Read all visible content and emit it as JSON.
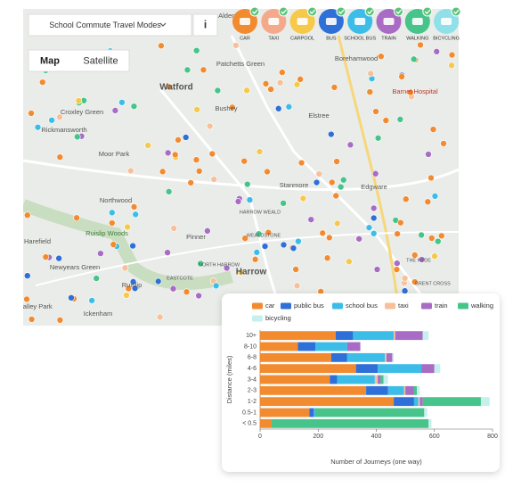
{
  "toolbar": {
    "dropdown": "School Commute Travel Modes",
    "info": "i"
  },
  "modes": [
    "CAR",
    "TAXI",
    "CARPOOL",
    "BUS",
    "SCHOOL BUS",
    "TRAIN",
    "WALKING",
    "BICYCLING"
  ],
  "map_tabs": [
    "Map",
    "Satellite"
  ],
  "map_labels": [
    "Aldenham",
    "Patchetts Green",
    "Watford",
    "Borehamwood",
    "Barnet Hospital",
    "Croxley Green",
    "Bushey",
    "Elstree",
    "Rickmansworth",
    "Moor Park",
    "Stanmore",
    "Edgware",
    "Northwood",
    "HARROW WEALD",
    "Ruislip Woods",
    "Pinner",
    "WEALDSTONE",
    "Harefield",
    "NORTH HARROW",
    "Newyears Green",
    "EASTCOTE",
    "Harrow",
    "Ruislip",
    "Ickenham",
    "Valley Park",
    "THE HYDE",
    "BRENT CROSS"
  ],
  "chart_data": {
    "type": "bar",
    "orientation": "horizontal",
    "stacked": true,
    "categories": [
      "10+",
      "8-10",
      "6-8",
      "4-6",
      "3-4",
      "2-3",
      "1-2",
      "0.5-1",
      "< 0.5"
    ],
    "series": [
      {
        "name": "car",
        "color": "#f28b30",
        "values": [
          260,
          130,
          245,
          330,
          240,
          365,
          460,
          170,
          40
        ]
      },
      {
        "name": "public bus",
        "color": "#2f6fd8",
        "values": [
          60,
          60,
          55,
          75,
          25,
          75,
          70,
          15,
          0
        ]
      },
      {
        "name": "school bus",
        "color": "#3bbde8",
        "values": [
          140,
          110,
          130,
          150,
          130,
          55,
          15,
          5,
          0
        ]
      },
      {
        "name": "taxi",
        "color": "#f7c09a",
        "values": [
          5,
          0,
          5,
          0,
          10,
          5,
          5,
          0,
          0
        ]
      },
      {
        "name": "train",
        "color": "#a86cc4",
        "values": [
          95,
          45,
          20,
          45,
          10,
          30,
          10,
          0,
          0
        ]
      },
      {
        "name": "walking",
        "color": "#46c48a",
        "values": [
          0,
          0,
          0,
          0,
          10,
          10,
          200,
          375,
          540
        ]
      },
      {
        "name": "bicycling",
        "color": "#c5f0ee",
        "values": [
          20,
          0,
          5,
          20,
          15,
          10,
          30,
          10,
          10
        ]
      }
    ],
    "xlim": [
      0,
      800
    ],
    "xticks": [
      0,
      200,
      400,
      600,
      800
    ],
    "xlabel": "Number of Journeys (one way)",
    "ylabel": "Distance (miles)",
    "legend": "top"
  }
}
